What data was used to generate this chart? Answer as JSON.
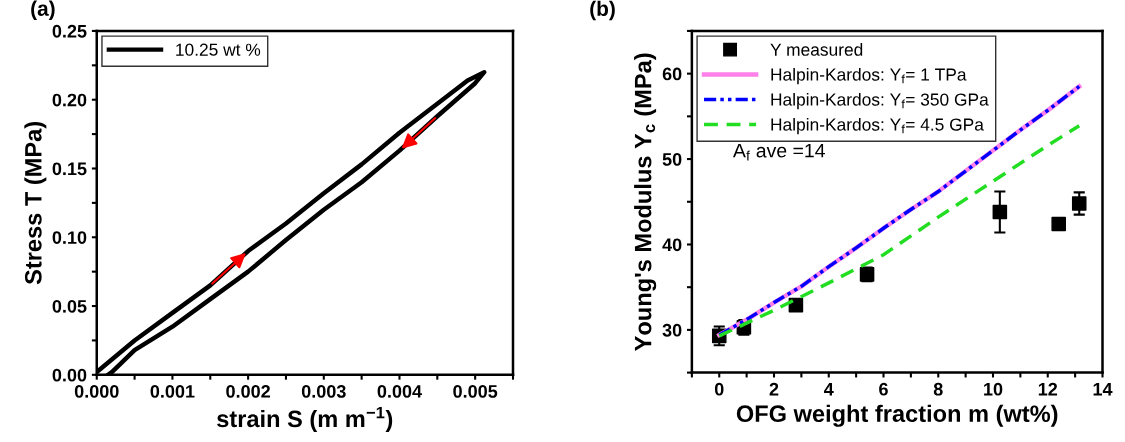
{
  "chart_data": [
    {
      "type": "line",
      "title": "(a)",
      "xlabel": "strain S (m m$^{−1}$)",
      "ylabel": "Stress T (MPa)",
      "xlim": [
        0,
        0.0055
      ],
      "ylim": [
        0,
        0.25
      ],
      "xticks": [
        {
          "value": 0,
          "label": "0.000"
        },
        {
          "value": 0.0005,
          "label": null
        },
        {
          "value": 0.001,
          "label": "0.001"
        },
        {
          "value": 0.0015,
          "label": null
        },
        {
          "value": 0.002,
          "label": "0.002"
        },
        {
          "value": 0.0025,
          "label": null
        },
        {
          "value": 0.003,
          "label": "0.003"
        },
        {
          "value": 0.0035,
          "label": null
        },
        {
          "value": 0.004,
          "label": "0.004"
        },
        {
          "value": 0.0045,
          "label": null
        },
        {
          "value": 0.005,
          "label": "0.005"
        },
        {
          "value": 0.0055,
          "label": null
        }
      ],
      "yticks": [
        {
          "value": 0,
          "label": "0.00"
        },
        {
          "value": 0.025,
          "label": null
        },
        {
          "value": 0.05,
          "label": "0.05"
        },
        {
          "value": 0.075,
          "label": null
        },
        {
          "value": 0.1,
          "label": "0.10"
        },
        {
          "value": 0.125,
          "label": null
        },
        {
          "value": 0.15,
          "label": "0.15"
        },
        {
          "value": 0.175,
          "label": null
        },
        {
          "value": 0.2,
          "label": "0.20"
        },
        {
          "value": 0.225,
          "label": null
        },
        {
          "value": 0.25,
          "label": "0.25"
        }
      ],
      "legend": "top left",
      "grid": false,
      "marker": "none",
      "line_style": "solid",
      "series": [
        {
          "name": "10.25 wt %",
          "color": "#000000",
          "x": [
            0,
            0.0005,
            0.001,
            0.0015,
            0.002,
            0.0025,
            0.003,
            0.0035,
            0.004,
            0.0045,
            0.0049,
            0.00512,
            0.005,
            0.0045,
            0.004,
            0.0035,
            0.003,
            0.0025,
            0.002,
            0.0015,
            0.001,
            0.0005,
            0.0002,
            0.00015
          ],
          "values": [
            0.002,
            0.025,
            0.045,
            0.065,
            0.09,
            0.11,
            0.132,
            0.153,
            0.176,
            0.197,
            0.214,
            0.22,
            0.212,
            0.188,
            0.163,
            0.14,
            0.12,
            0.098,
            0.075,
            0.055,
            0.035,
            0.018,
            0.002,
            0
          ]
        }
      ]
    },
    {
      "type": "line",
      "title": "(b)",
      "xlabel": "OFG weight fraction m (wt%)",
      "ylabel": "Young's Modulus Y$_{c}$ (MPa)",
      "xlim": [
        -1,
        14
      ],
      "ylim": [
        25,
        65
      ],
      "xticks": [
        {
          "value": -1,
          "label": null
        },
        0,
        {
          "value": 1,
          "label": null
        },
        2,
        {
          "value": 3,
          "label": null
        },
        4,
        {
          "value": 5,
          "label": null
        },
        6,
        {
          "value": 7,
          "label": null
        },
        8,
        {
          "value": 9,
          "label": null
        },
        10,
        {
          "value": 11,
          "label": null
        },
        12,
        {
          "value": 13,
          "label": null
        },
        14
      ],
      "yticks": [
        {
          "value": 25,
          "label": null
        },
        30,
        {
          "value": 35,
          "label": null
        },
        40,
        {
          "value": 45,
          "label": null
        },
        50,
        {
          "value": 55,
          "label": null
        },
        60,
        {
          "value": 65,
          "label": null
        }
      ],
      "legend": "top left",
      "grid": false,
      "annotations": [
        "A$_{f}$ ave =14"
      ],
      "series": [
        {
          "name": "Y measured",
          "type": "scatter",
          "marker": "square",
          "color": "#000000",
          "x": [
            0,
            0.9,
            2.8,
            5.4,
            10.25,
            12.4,
            13.15
          ],
          "values": [
            29.3,
            30.3,
            32.9,
            36.5,
            43.8,
            42.4,
            44.8
          ],
          "errors": [
            1.1,
            0.85,
            0.4,
            0.8,
            2.4,
            0.5,
            1.3
          ]
        },
        {
          "name": "Halpin-Kardos: Y$_{f}$= 1 TPa",
          "type": "line",
          "line_style": "solid",
          "color": "#ff80e8",
          "x": [
            0,
            1,
            2,
            3,
            4,
            5,
            6,
            7,
            8,
            9,
            10,
            11,
            12,
            13.15
          ],
          "values": [
            29.4,
            31.2,
            33.2,
            35.1,
            37.4,
            39.6,
            41.9,
            44.1,
            46.2,
            48.6,
            51.0,
            53.4,
            55.7,
            58.5
          ]
        },
        {
          "name": "Halpin-Kardos: Y$_{f}$= 350 GPa",
          "type": "line",
          "line_style": "dashdot",
          "color": "#0000ff",
          "x": [
            0,
            1,
            2,
            3,
            4,
            5,
            6,
            7,
            8,
            9,
            10,
            11,
            12,
            13.15
          ],
          "values": [
            29.4,
            31.2,
            33.2,
            35.1,
            37.4,
            39.6,
            41.9,
            44.1,
            46.2,
            48.6,
            51.0,
            53.4,
            55.7,
            58.5
          ]
        },
        {
          "name": "Halpin-Kardos: Y$_{f}$= 4.5 GPa",
          "type": "line",
          "line_style": "dashed",
          "color": "#22dd22",
          "x": [
            0,
            2,
            4,
            6,
            8,
            10,
            12,
            13.15
          ],
          "values": [
            29.3,
            32.3,
            35.5,
            38.8,
            43.2,
            47.4,
            51.6,
            53.9
          ]
        }
      ]
    }
  ]
}
